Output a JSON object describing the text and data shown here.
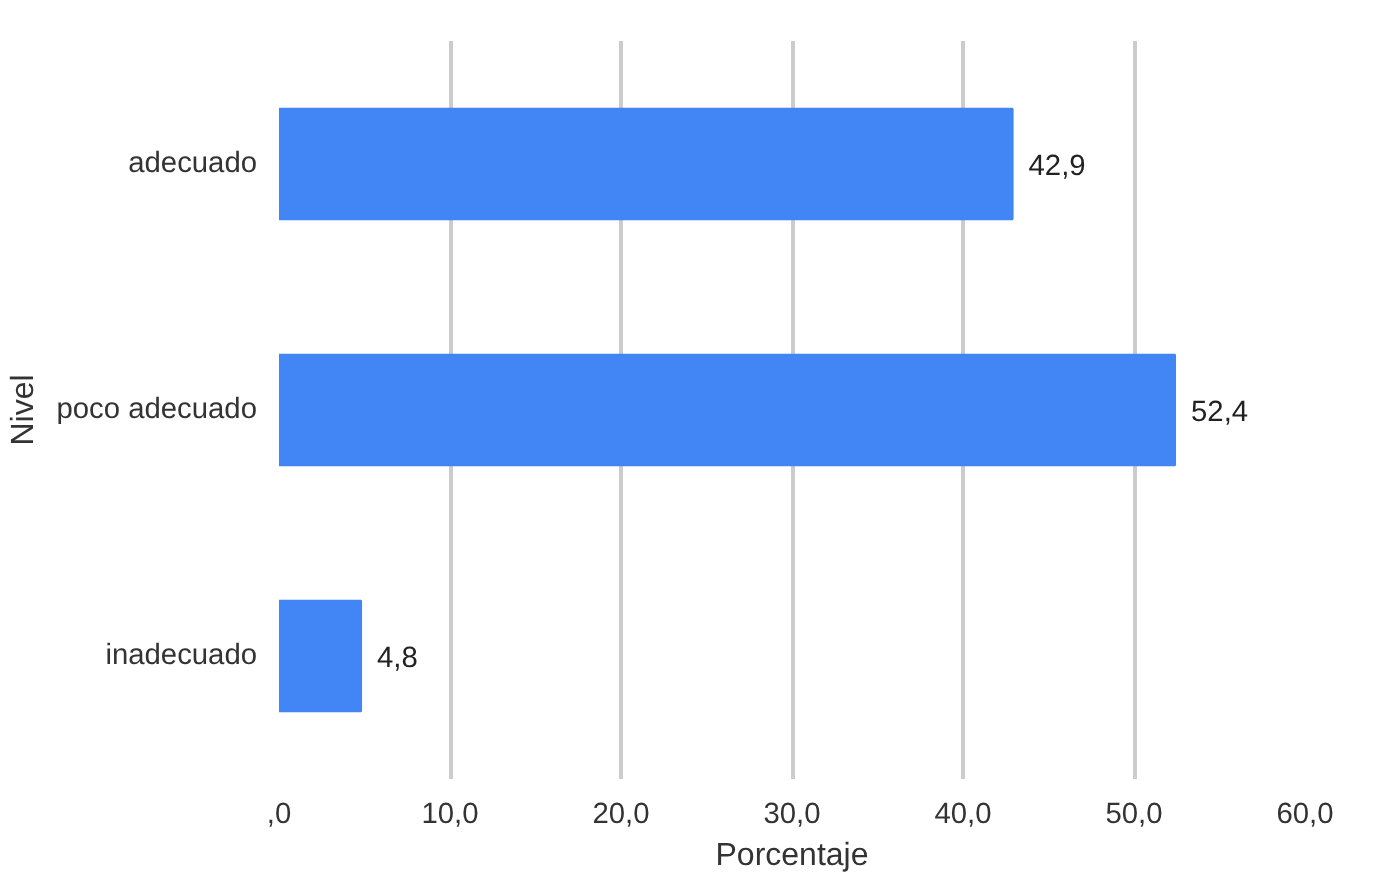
{
  "chart_data": {
    "type": "bar",
    "orientation": "horizontal",
    "xlabel": "Porcentaje",
    "ylabel": "Nivel",
    "categories": [
      "adecuado",
      "poco adecuado",
      "inadecuado"
    ],
    "values": [
      42.9,
      52.4,
      4.8
    ],
    "value_labels": [
      "42,9",
      "52,4",
      "4,8"
    ],
    "color": "#4285f4",
    "xlim": [
      0,
      60
    ],
    "xticks": [
      {
        "value": 0,
        "label": ",0"
      },
      {
        "value": 10,
        "label": "10,0"
      },
      {
        "value": 20,
        "label": "20,0"
      },
      {
        "value": 30,
        "label": "30,0"
      },
      {
        "value": 40,
        "label": "40,0"
      },
      {
        "value": 50,
        "label": "50,0"
      },
      {
        "value": 60,
        "label": "60,0"
      }
    ],
    "grid": "x"
  }
}
